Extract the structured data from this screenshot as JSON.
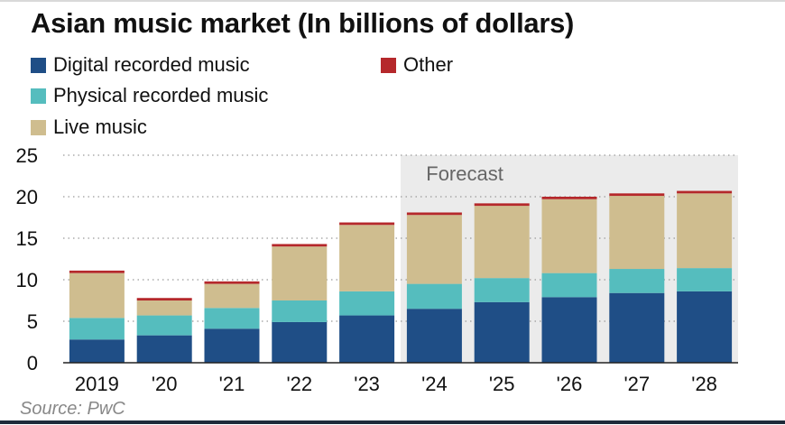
{
  "chart_data": {
    "type": "bar",
    "stacked": true,
    "title": "Asian music market (In billions of dollars)",
    "categories": [
      "2019",
      "'20",
      "'21",
      "'22",
      "'23",
      "'24",
      "'25",
      "'26",
      "'27",
      "'28"
    ],
    "series": [
      {
        "name": "Digital recorded music",
        "color": "#1f4e86",
        "values": [
          2.8,
          3.3,
          4.1,
          4.9,
          5.7,
          6.5,
          7.3,
          7.9,
          8.4,
          8.6
        ]
      },
      {
        "name": "Physical recorded music",
        "color": "#55bdbe",
        "values": [
          2.6,
          2.4,
          2.5,
          2.6,
          2.9,
          3.0,
          2.9,
          2.9,
          2.9,
          2.8
        ]
      },
      {
        "name": "Live music",
        "color": "#cfbd8f",
        "values": [
          5.4,
          1.8,
          2.9,
          6.5,
          8.0,
          8.3,
          8.7,
          8.9,
          8.8,
          9.0
        ]
      },
      {
        "name": "Other",
        "color": "#b5282b",
        "values": [
          0.3,
          0.3,
          0.3,
          0.3,
          0.3,
          0.3,
          0.3,
          0.3,
          0.3,
          0.3
        ]
      }
    ],
    "legend_order": [
      "Digital recorded music",
      "Other",
      "Physical recorded music",
      "Live music"
    ],
    "yticks": [
      0,
      5,
      10,
      15,
      20,
      25
    ],
    "ylim": [
      0,
      25
    ],
    "forecast_label": "Forecast",
    "forecast_start_index": 5,
    "source": "Source: PwC"
  }
}
